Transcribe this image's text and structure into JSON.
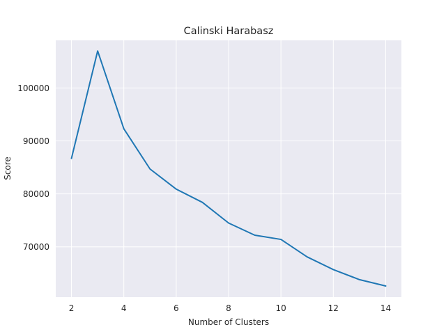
{
  "chart_data": {
    "type": "line",
    "title": "Calinski Harabasz",
    "xlabel": "Number of Clusters",
    "ylabel": "Score",
    "xlim": [
      1.4,
      14.6
    ],
    "ylim": [
      60500,
      109000
    ],
    "xticks": [
      2,
      4,
      6,
      8,
      10,
      12,
      14
    ],
    "xtick_labels": [
      "2",
      "4",
      "6",
      "8",
      "10",
      "12",
      "14"
    ],
    "yticks": [
      70000,
      80000,
      90000,
      100000
    ],
    "ytick_labels": [
      "70000",
      "80000",
      "90000",
      "100000"
    ],
    "grid": true,
    "series": [
      {
        "x": [
          2,
          3,
          4,
          5,
          6,
          7,
          8,
          9,
          10,
          11,
          12,
          13,
          14
        ],
        "values": [
          86700,
          107000,
          92300,
          84700,
          80900,
          78400,
          74500,
          72200,
          71400,
          68100,
          65700,
          63800,
          62600
        ]
      }
    ]
  },
  "style": {
    "background": "#ffffff",
    "plot_background": "#eaeaf2",
    "grid_color": "#ffffff",
    "line_color": "#1f77b4",
    "text_color": "#262626"
  }
}
